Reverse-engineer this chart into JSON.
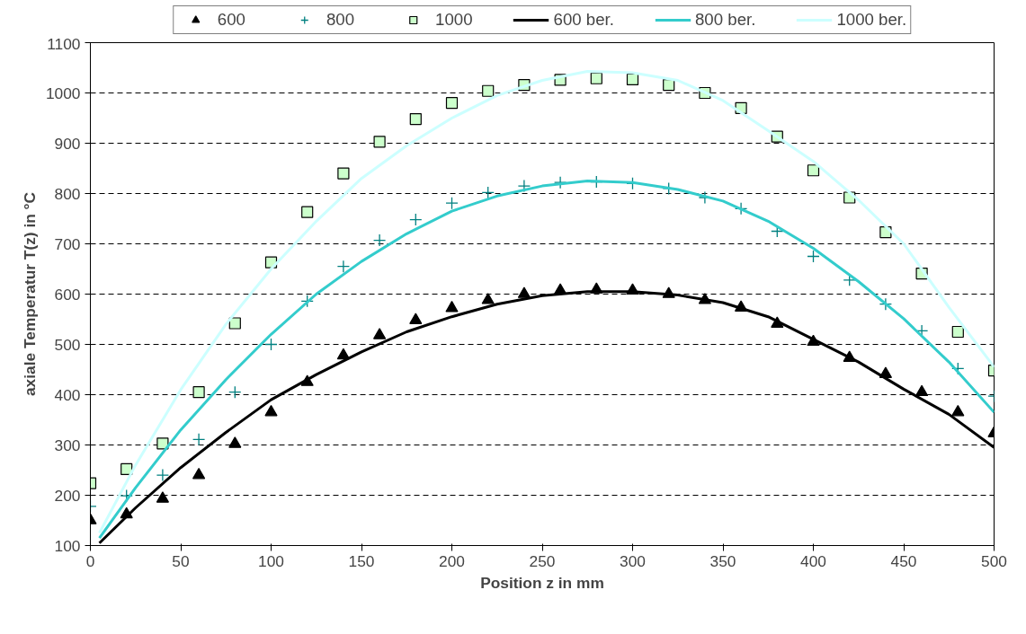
{
  "chart_data": {
    "type": "scatter",
    "xlabel": "Position z in mm",
    "ylabel": "axiale Temperatur T(z) in °C",
    "xlim": [
      0,
      500
    ],
    "ylim": [
      100,
      1100
    ],
    "xticks": [
      0,
      50,
      100,
      150,
      200,
      250,
      300,
      350,
      400,
      450,
      500
    ],
    "yticks": [
      100,
      200,
      300,
      400,
      500,
      600,
      700,
      800,
      900,
      1000,
      1100
    ],
    "grid": "y",
    "legend": "top",
    "series": [
      {
        "name": "600",
        "marker": "triangle",
        "color": "#000000",
        "x": [
          0,
          20,
          40,
          60,
          80,
          100,
          120,
          140,
          160,
          180,
          200,
          220,
          240,
          260,
          280,
          300,
          320,
          340,
          360,
          380,
          400,
          420,
          440,
          460,
          480,
          500
        ],
        "values": [
          150,
          162,
          193,
          240,
          302,
          365,
          425,
          478,
          518,
          548,
          572,
          588,
          600,
          607,
          609,
          607,
          600,
          588,
          573,
          541,
          505,
          473,
          441,
          405,
          365,
          323
        ]
      },
      {
        "name": "800",
        "marker": "cross",
        "color": "#008080",
        "x": [
          0,
          20,
          40,
          60,
          80,
          100,
          120,
          140,
          160,
          180,
          200,
          220,
          240,
          260,
          280,
          300,
          320,
          340,
          360,
          380,
          400,
          420,
          440,
          460,
          480,
          500
        ],
        "values": [
          178,
          199,
          240,
          311,
          405,
          500,
          586,
          655,
          707,
          748,
          781,
          802,
          815,
          822,
          823,
          820,
          810,
          792,
          770,
          725,
          675,
          628,
          580,
          527,
          452,
          397
        ]
      },
      {
        "name": "1000",
        "marker": "square",
        "color": "#ccffcc",
        "x": [
          0,
          20,
          40,
          60,
          80,
          100,
          120,
          140,
          160,
          180,
          200,
          220,
          240,
          260,
          280,
          300,
          320,
          340,
          360,
          380,
          400,
          420,
          440,
          460,
          480,
          500
        ],
        "values": [
          224,
          252,
          303,
          405,
          542,
          663,
          763,
          840,
          903,
          948,
          980,
          1004,
          1016,
          1026,
          1029,
          1027,
          1016,
          1000,
          970,
          913,
          846,
          792,
          723,
          641,
          525,
          448
        ]
      },
      {
        "name": "600 ber.",
        "type": "line",
        "line_style": "solid",
        "color": "#000000",
        "x": [
          5,
          25,
          50,
          75,
          100,
          125,
          150,
          175,
          200,
          225,
          250,
          275,
          300,
          325,
          350,
          375,
          400,
          425,
          450,
          475,
          500
        ],
        "values": [
          105,
          175,
          255,
          325,
          390,
          440,
          485,
          525,
          555,
          580,
          597,
          605,
          605,
          598,
          583,
          555,
          510,
          465,
          411,
          361,
          295
        ]
      },
      {
        "name": "800 ber.",
        "type": "line",
        "line_style": "solid",
        "color": "#33cccc",
        "x": [
          5,
          25,
          50,
          75,
          100,
          125,
          150,
          175,
          200,
          225,
          250,
          275,
          300,
          325,
          350,
          375,
          400,
          425,
          450,
          475,
          500
        ],
        "values": [
          115,
          215,
          330,
          430,
          520,
          600,
          665,
          720,
          765,
          795,
          815,
          825,
          822,
          808,
          785,
          745,
          691,
          625,
          551,
          465,
          365
        ]
      },
      {
        "name": "1000 ber.",
        "type": "line",
        "line_style": "solid",
        "color": "#ccffff",
        "x": [
          5,
          25,
          50,
          75,
          100,
          125,
          150,
          175,
          200,
          225,
          250,
          275,
          300,
          325,
          350,
          375,
          400,
          425,
          450,
          475,
          500
        ],
        "values": [
          125,
          260,
          410,
          540,
          650,
          745,
          830,
          895,
          950,
          995,
          1025,
          1043,
          1040,
          1025,
          985,
          925,
          864,
          787,
          700,
          574,
          455
        ]
      }
    ]
  }
}
